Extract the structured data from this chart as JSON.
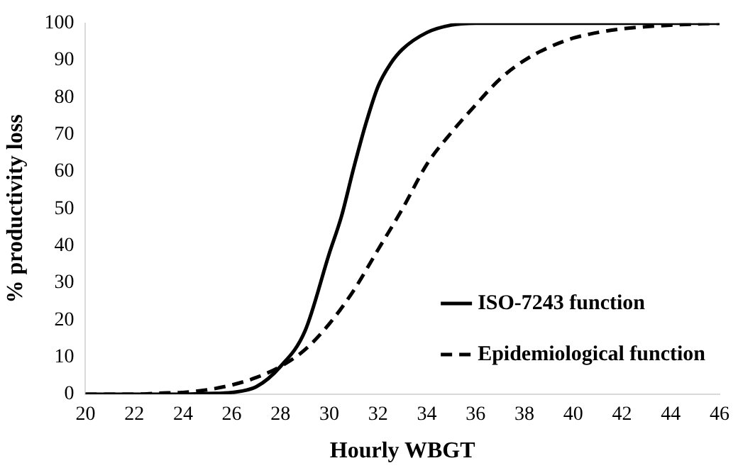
{
  "chart_data": {
    "type": "line",
    "xlabel": "Hourly WBGT",
    "ylabel": "% productivity loss",
    "xlim": [
      20,
      46
    ],
    "xticks": [
      20,
      22,
      24,
      26,
      28,
      30,
      32,
      34,
      36,
      38,
      40,
      42,
      44,
      46
    ],
    "ylim": [
      0,
      100
    ],
    "yticks": [
      0,
      10,
      20,
      30,
      40,
      50,
      60,
      70,
      80,
      90,
      100
    ],
    "grid": false,
    "legend": "bottom right",
    "marker": "none",
    "series": [
      {
        "name": "ISO-7243 function",
        "color": "#000000",
        "line_style": "solid",
        "x": [
          20,
          22,
          24,
          25,
          26,
          27,
          28,
          29,
          30,
          30.5,
          31,
          31.5,
          32,
          32.5,
          33,
          34,
          35,
          36,
          38,
          40,
          42,
          44,
          46
        ],
        "values": [
          0,
          0,
          0,
          0.2,
          0.5,
          2,
          7.5,
          17,
          38,
          48,
          61,
          73,
          83,
          89,
          93,
          97.5,
          99.5,
          100,
          100,
          100,
          100,
          100,
          100
        ]
      },
      {
        "name": "Epidemiological function",
        "color": "#000000",
        "line_style": "dashed",
        "x": [
          20,
          22,
          23,
          24,
          25,
          26,
          27,
          28,
          29,
          30,
          31,
          32,
          33,
          34,
          35,
          36,
          37,
          38,
          39,
          40,
          41,
          42,
          44,
          46
        ],
        "values": [
          0,
          0,
          0.3,
          0.5,
          1.2,
          2.5,
          4.5,
          7.5,
          12,
          19,
          28,
          39,
          50,
          62,
          70.5,
          78,
          85,
          90,
          93.5,
          96,
          97.5,
          98.5,
          99.5,
          100
        ]
      }
    ]
  }
}
